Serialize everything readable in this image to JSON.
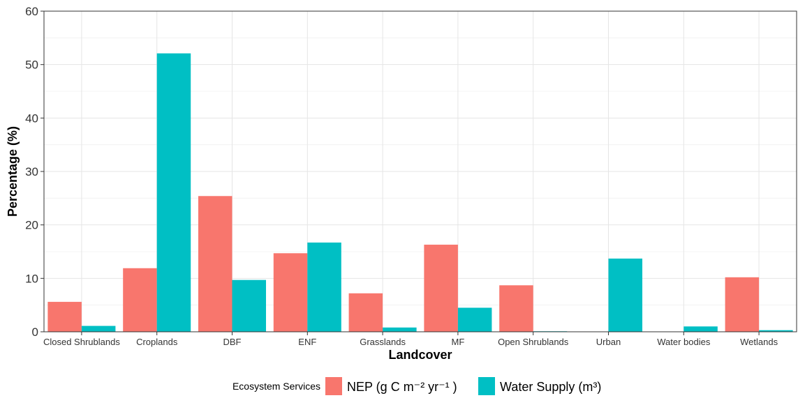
{
  "chart_data": {
    "type": "bar",
    "title": "",
    "xlabel": "Landcover",
    "ylabel": "Percentage (%)",
    "ylim": [
      0,
      60
    ],
    "yticks": [
      "0",
      "10",
      "20",
      "30",
      "40",
      "50",
      "60"
    ],
    "ytick_values": [
      0,
      10,
      20,
      30,
      40,
      50,
      60
    ],
    "grid": true,
    "legend_position": "bottom",
    "legend_title": "Ecosystem Services",
    "categories": [
      "Closed Shrublands",
      "Croplands",
      "DBF",
      "ENF",
      "Grasslands",
      "MF",
      "Open Shrublands",
      "Urban",
      "Water bodies",
      "Wetlands"
    ],
    "series": [
      {
        "name": "NEP (g C m⁻² yr⁻¹ )",
        "color": "#F8766D",
        "values": [
          5.6,
          11.9,
          25.4,
          14.7,
          7.2,
          16.3,
          8.7,
          0,
          0,
          10.2
        ]
      },
      {
        "name": "Water Supply (m³)",
        "color": "#00BFC4",
        "values": [
          1.1,
          52.1,
          9.7,
          16.7,
          0.8,
          4.5,
          0.1,
          13.7,
          1.0,
          0.3
        ]
      }
    ]
  }
}
